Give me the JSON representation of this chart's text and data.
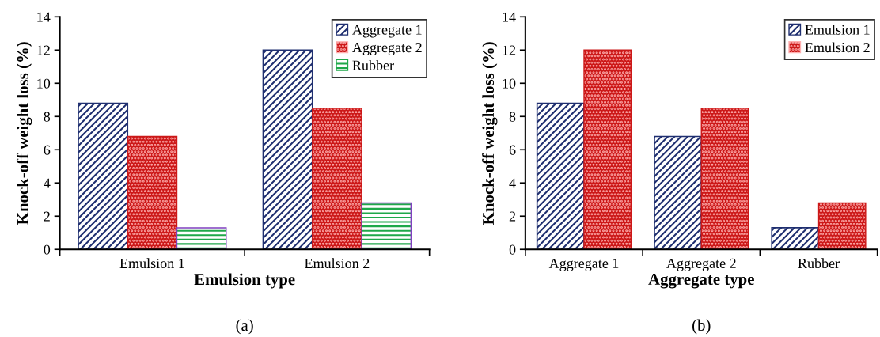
{
  "chart_data": [
    {
      "type": "bar",
      "xlabel": "Emulsion type",
      "ylabel": "Knock-off weight loss (%)",
      "categories": [
        "Emulsion 1",
        "Emulsion 2"
      ],
      "series": [
        {
          "name": "Aggregate 1",
          "color": "#1f2f70",
          "values": [
            8.8,
            12.0
          ]
        },
        {
          "name": "Aggregate 2",
          "color": "#cc1818",
          "values": [
            6.8,
            8.5
          ]
        },
        {
          "name": "Rubber",
          "color": "#1fa84a",
          "values": [
            1.3,
            2.8
          ]
        }
      ],
      "ylim": [
        0,
        14
      ],
      "yticks": [
        0,
        2,
        4,
        6,
        8,
        10,
        12,
        14
      ],
      "grid": false,
      "legend": "top right",
      "annotations": [
        "(a)"
      ]
    },
    {
      "type": "bar",
      "xlabel": "Aggregate type",
      "ylabel": "Knock-off weight loss (%)",
      "categories": [
        "Aggregate 1",
        "Aggregate 2",
        "Rubber"
      ],
      "series": [
        {
          "name": "Emulsion 1",
          "color": "#1f2f70",
          "values": [
            8.8,
            6.8,
            1.3
          ]
        },
        {
          "name": "Emulsion 2",
          "color": "#cc1818",
          "values": [
            12.0,
            8.5,
            2.8
          ]
        }
      ],
      "ylim": [
        0,
        14
      ],
      "yticks": [
        0,
        2,
        4,
        6,
        8,
        10,
        12,
        14
      ],
      "grid": false,
      "legend": "top right",
      "annotations": [
        "(b)"
      ]
    }
  ]
}
